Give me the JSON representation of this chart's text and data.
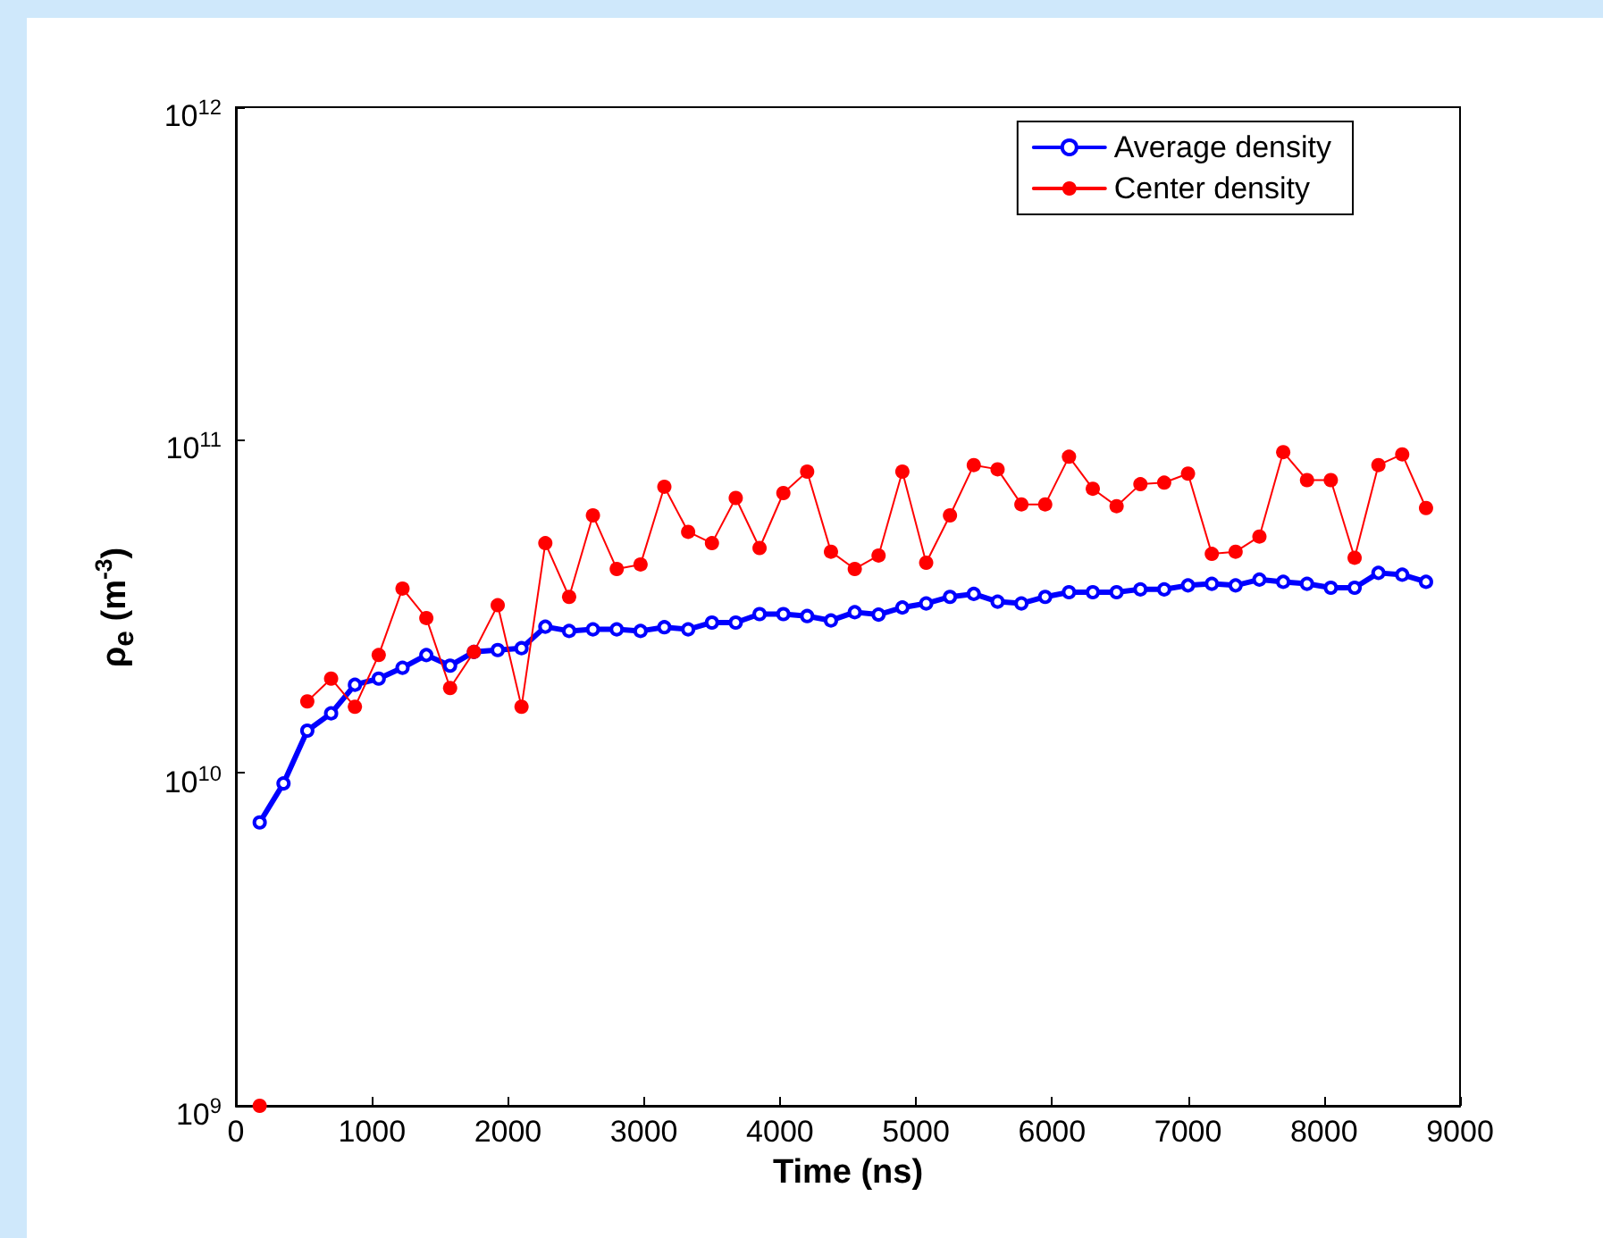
{
  "chart_data": {
    "type": "line",
    "xlabel": "Time (ns)",
    "ylabel": "ρ$_{e}$ (m$^{-3}$)",
    "x": [
      175,
      350,
      525,
      700,
      875,
      1050,
      1225,
      1400,
      1575,
      1750,
      1925,
      2100,
      2275,
      2450,
      2625,
      2800,
      2975,
      3150,
      3325,
      3500,
      3675,
      3850,
      4025,
      4200,
      4375,
      4550,
      4725,
      4900,
      5075,
      5250,
      5425,
      5600,
      5775,
      5950,
      6125,
      6300,
      6475,
      6650,
      6825,
      7000,
      7175,
      7350,
      7525,
      7700,
      7875,
      8050,
      8225,
      8400,
      8575,
      8750
    ],
    "series": [
      {
        "name": "Average density",
        "color": "#0000ff",
        "marker": "circle",
        "values": [
          7100000000.0,
          9300000000.0,
          13400000000.0,
          15100000000.0,
          18400000000.0,
          19200000000.0,
          20700000000.0,
          22600000000.0,
          21000000000.0,
          23100000000.0,
          23400000000.0,
          23700000000.0,
          27500000000.0,
          26700000000.0,
          27000000000.0,
          27000000000.0,
          26700000000.0,
          27400000000.0,
          27000000000.0,
          28300000000.0,
          28300000000.0,
          30000000000.0,
          30000000000.0,
          29600000000.0,
          28700000000.0,
          30400000000.0,
          29900000000.0,
          31400000000.0,
          32300000000.0,
          33800000000.0,
          34500000000.0,
          32700000000.0,
          32300000000.0,
          33800000000.0,
          34900000000.0,
          34900000000.0,
          34900000000.0,
          35600000000.0,
          35600000000.0,
          36600000000.0,
          37000000000.0,
          36600000000.0,
          38100000000.0,
          37500000000.0,
          37000000000.0,
          36000000000.0,
          36000000000.0,
          39900000000.0,
          39400000000.0,
          37500000000.0
        ]
      },
      {
        "name": "Center density",
        "color": "#ff0000",
        "marker": "circle",
        "values": [
          1000000000.0,
          null,
          16400000000.0,
          19200000000.0,
          15800000000.0,
          22600000000.0,
          35800000000.0,
          29200000000.0,
          18000000000.0,
          23100000000.0,
          31900000000.0,
          15800000000.0,
          49000000000.0,
          33800000000.0,
          59400000000.0,
          41000000000.0,
          42300000000.0,
          72400000000.0,
          53000000000.0,
          49000000000.0,
          67000000000.0,
          47400000000.0,
          69300000000.0,
          80400000000.0,
          46200000000.0,
          41000000000.0,
          45000000000.0,
          80400000000.0,
          42800000000.0,
          59400000000.0,
          84100000000.0,
          81700000000.0,
          64100000000.0,
          64100000000.0,
          89100000000.0,
          71400000000.0,
          63300000000.0,
          73700000000.0,
          74500000000.0,
          79300000000.0,
          45500000000.0,
          46200000000.0,
          51300000000.0,
          92000000000.0,
          75800000000.0,
          75800000000.0,
          44300000000.0,
          84100000000.0,
          90600000000.0,
          62500000000.0
        ]
      }
    ],
    "xlim": [
      0,
      9000
    ],
    "xticks": [
      0,
      1000,
      2000,
      3000,
      4000,
      5000,
      6000,
      7000,
      8000,
      9000
    ],
    "ylim": [
      1000000000.0,
      1000000000000.0
    ],
    "yticks": [
      {
        "value": 1000000000.0,
        "label": "10$^{9}$"
      },
      {
        "value": 10000000000.0,
        "label": "10$^{10}$"
      },
      {
        "value": 100000000000.0,
        "label": "10$^{11}$"
      },
      {
        "value": 1000000000000.0,
        "label": "10$^{12}$"
      }
    ],
    "log": "y",
    "grid": false,
    "legend": "top right"
  }
}
